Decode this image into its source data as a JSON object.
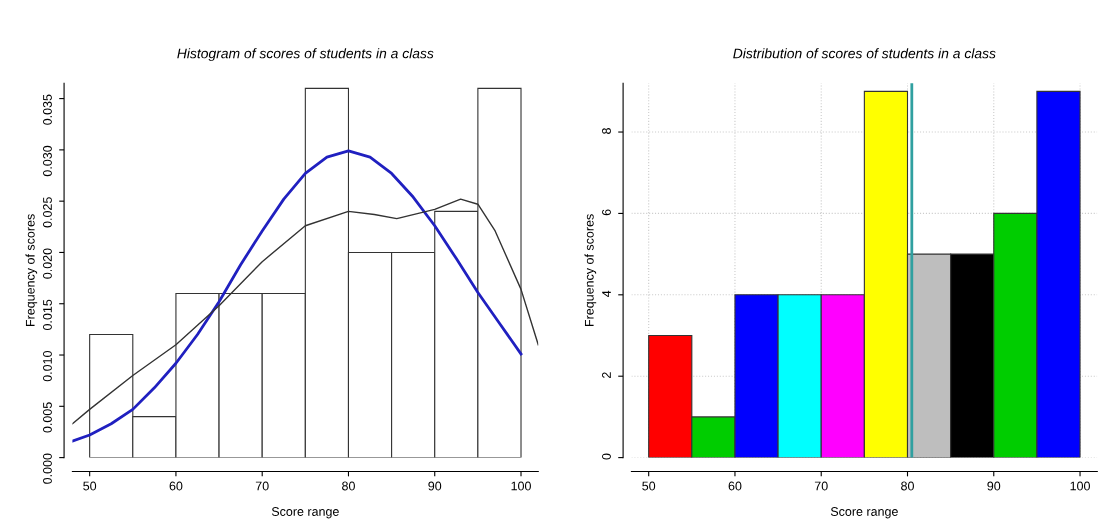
{
  "chart_data": [
    {
      "type": "histogram",
      "title": "Histogram of scores of students in a class",
      "xlabel": "Score range",
      "ylabel": "Frequency of scores",
      "bins": [
        50,
        55,
        60,
        65,
        70,
        75,
        80,
        85,
        90,
        95,
        100
      ],
      "values": [
        0.012,
        0.004,
        0.016,
        0.016,
        0.016,
        0.036,
        0.02,
        0.02,
        0.024,
        0.036
      ],
      "color": "#ffffff",
      "series": [
        {
          "type": "line",
          "color": "#2020c0",
          "x": [
            48,
            50,
            52.5,
            55,
            57.5,
            60,
            62.5,
            65,
            67.5,
            70,
            72.5,
            75,
            77.5,
            80,
            82.5,
            85,
            87.5,
            90,
            92.5,
            95,
            97.5,
            100
          ],
          "values": [
            0.0016,
            0.0022,
            0.0033,
            0.0047,
            0.0068,
            0.0092,
            0.012,
            0.0152,
            0.0188,
            0.0221,
            0.0252,
            0.0277,
            0.0293,
            0.0299,
            0.0293,
            0.0277,
            0.0254,
            0.0226,
            0.0194,
            0.0161,
            0.0131,
            0.0101
          ]
        },
        {
          "type": "line",
          "color": "#333333",
          "x": [
            48,
            50,
            55,
            60,
            65,
            70,
            75,
            80,
            83,
            85.6,
            90,
            93,
            95,
            97,
            100,
            102
          ],
          "values": [
            0.0033,
            0.0047,
            0.008,
            0.011,
            0.0148,
            0.0191,
            0.0226,
            0.024,
            0.0237,
            0.0233,
            0.0242,
            0.0252,
            0.0247,
            0.0221,
            0.0164,
            0.011
          ]
        }
      ],
      "xlim": [
        48,
        102
      ],
      "ylim": [
        0,
        0.0365
      ],
      "xticks": [
        50,
        60,
        70,
        80,
        90,
        100
      ],
      "yticks": [
        {
          "value": 0,
          "label": "0.000"
        },
        {
          "value": 0.005,
          "label": "0.005"
        },
        {
          "value": 0.01,
          "label": "0.010"
        },
        {
          "value": 0.015,
          "label": "0.015"
        },
        {
          "value": 0.02,
          "label": "0.020"
        },
        {
          "value": 0.025,
          "label": "0.025"
        },
        {
          "value": 0.03,
          "label": "0.030"
        },
        {
          "value": 0.035,
          "label": "0.035"
        }
      ]
    },
    {
      "type": "histogram",
      "title": "Distribution of scores of students in a class",
      "xlabel": "Score range",
      "ylabel": "Frequency of scores",
      "bins": [
        50,
        55,
        60,
        65,
        70,
        75,
        80,
        85,
        90,
        95,
        100
      ],
      "values": [
        3,
        1,
        4,
        4,
        4,
        9,
        5,
        5,
        6,
        9
      ],
      "colors": [
        "#ff0000",
        "#00cd00",
        "#0000ff",
        "#00ffff",
        "#ff00ff",
        "#ffff00",
        "#bebebe",
        "#000000",
        "#00cd00",
        "#0000ff"
      ],
      "ref_lines": [
        {
          "axis": "x",
          "value": 80.5,
          "color": "#30a0a0"
        }
      ],
      "grid": true,
      "xlim": [
        48,
        102
      ],
      "ylim": [
        0,
        9.2
      ],
      "xticks": [
        50,
        60,
        70,
        80,
        90,
        100
      ],
      "yticks": [
        0,
        2,
        4,
        6,
        8
      ]
    }
  ]
}
